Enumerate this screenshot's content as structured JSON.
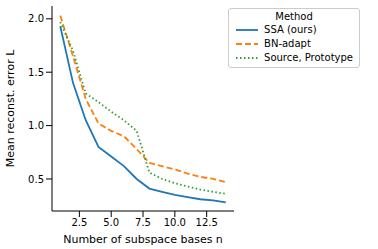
{
  "chart_data": {
    "type": "line",
    "x_label": "Number of subspace bases n",
    "y_label": "Mean reconst. error L",
    "legend_title": "Method",
    "legend": "upper right",
    "grid": false,
    "x": [
      1,
      2,
      3,
      4,
      5,
      6,
      7,
      8,
      9,
      10,
      11,
      12,
      13,
      14
    ],
    "xlim": [
      0.35,
      14.65
    ],
    "xticks": [
      {
        "value": 2.5,
        "label": "2.5"
      },
      {
        "value": 5,
        "label": "5.0"
      },
      {
        "value": 7.5,
        "label": "7.5"
      },
      {
        "value": 10,
        "label": "10.0"
      },
      {
        "value": 12.5,
        "label": "12.5"
      }
    ],
    "ylim": [
      0.2,
      2.12
    ],
    "yticks": [
      0.5,
      {
        "value": 1,
        "label": "1.0"
      },
      1.5,
      {
        "value": 2,
        "label": "2.0"
      }
    ],
    "series": [
      {
        "name": "SSA (ours)",
        "color": "#1f77b4",
        "line_style": "solid",
        "values": [
          1.93,
          1.4,
          1.05,
          0.8,
          0.71,
          0.62,
          0.5,
          0.41,
          0.38,
          0.35,
          0.33,
          0.31,
          0.3,
          0.28
        ]
      },
      {
        "name": "BN-adapt",
        "color": "#ff7f0e",
        "line_style": "dashed",
        "values": [
          2.03,
          1.65,
          1.25,
          1.02,
          0.95,
          0.9,
          0.78,
          0.65,
          0.62,
          0.59,
          0.55,
          0.52,
          0.5,
          0.47
        ]
      },
      {
        "name": "Source, Prototype",
        "color": "#2ca02c",
        "line_style": "dotted",
        "values": [
          1.97,
          1.7,
          1.3,
          1.22,
          1.13,
          1.05,
          0.95,
          0.56,
          0.5,
          0.46,
          0.43,
          0.4,
          0.38,
          0.36
        ]
      }
    ]
  }
}
